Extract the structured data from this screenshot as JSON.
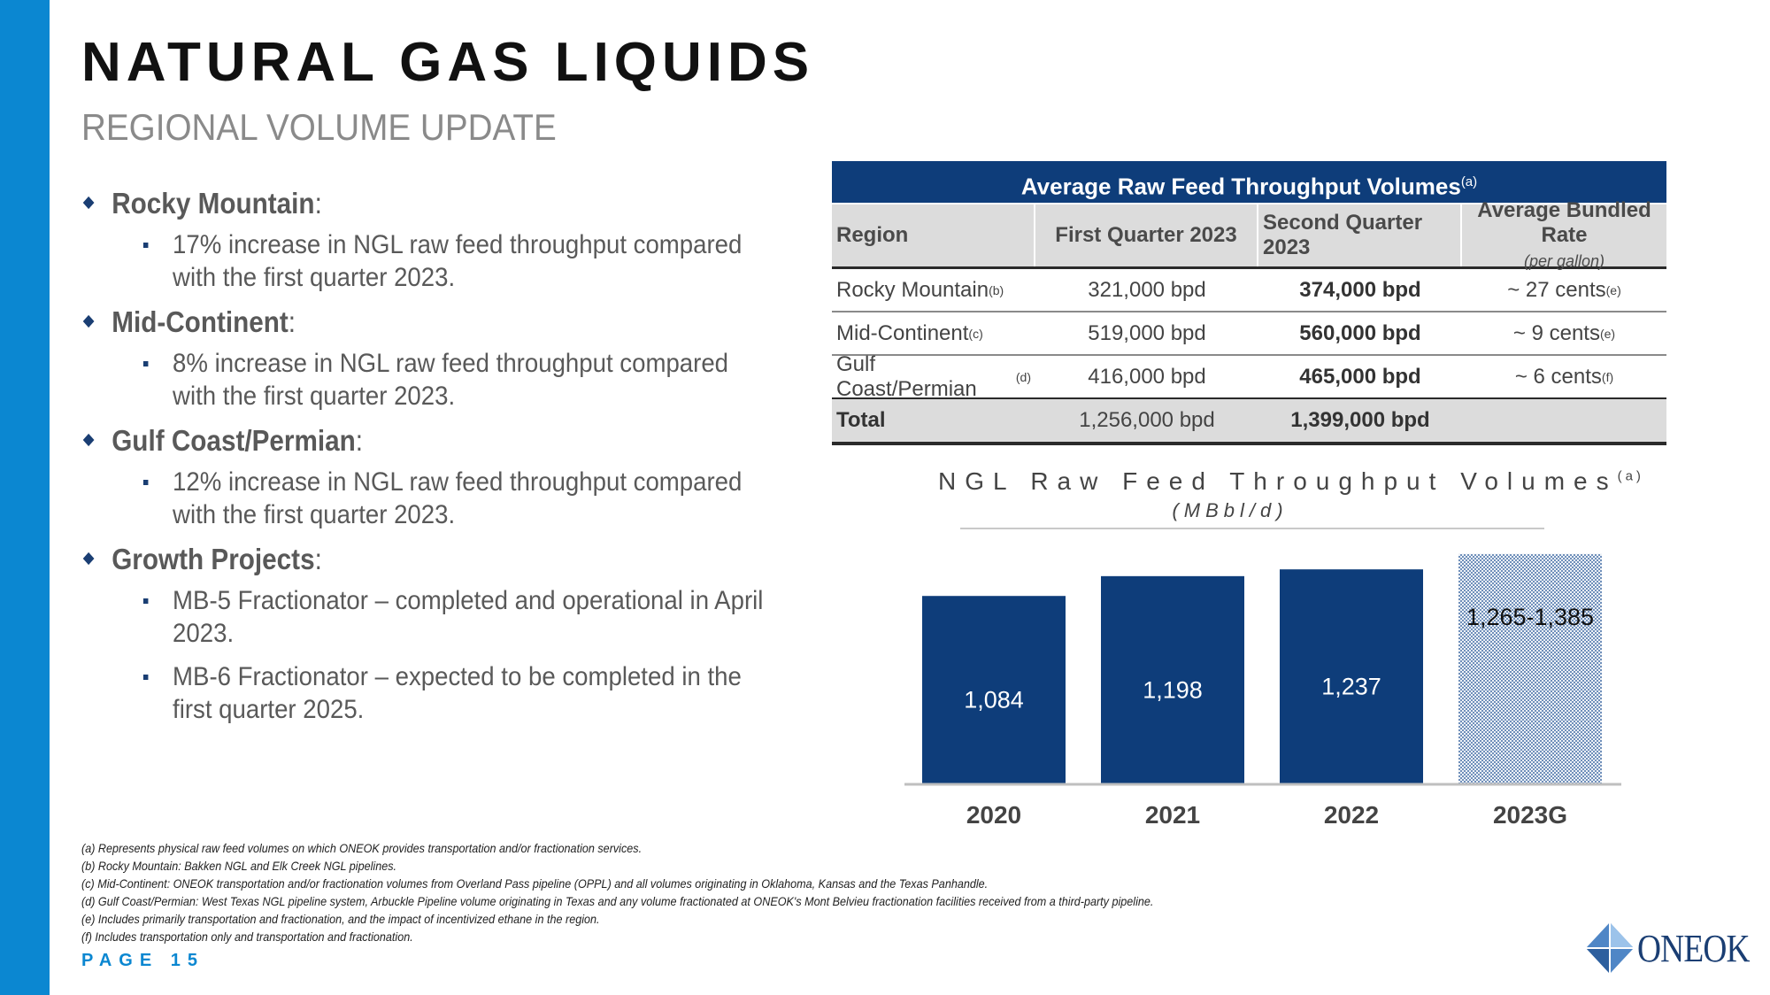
{
  "header": {
    "title": "NATURAL GAS LIQUIDS",
    "subtitle": "REGIONAL VOLUME UPDATE"
  },
  "bullets": [
    {
      "heading": "Rocky Mountain",
      "colon": ":",
      "items": [
        "17% increase in NGL raw feed throughput compared with the first quarter 2023."
      ]
    },
    {
      "heading": "Mid-Continent",
      "colon": ":",
      "items": [
        "8% increase in NGL raw feed throughput compared with the first quarter 2023."
      ]
    },
    {
      "heading": "Gulf Coast/Permian",
      "colon": ":",
      "items": [
        "12% increase in NGL raw feed throughput compared with the first quarter 2023."
      ]
    },
    {
      "heading": "Growth Projects",
      "colon": ":",
      "items": [
        "MB-5 Fractionator – completed and operational in April 2023.",
        "MB-6 Fractionator – expected to be completed in the first quarter 2025."
      ]
    }
  ],
  "table": {
    "title": "Average Raw Feed Throughput Volumes",
    "title_note": "(a)",
    "headers": {
      "region": "Region",
      "q1": "First Quarter 2023",
      "q2": "Second Quarter 2023",
      "rate": "Average Bundled Rate",
      "rate_note": "(per gallon)"
    },
    "rows": [
      {
        "region": "Rocky Mountain",
        "region_note": "(b)",
        "q1": "321,000 bpd",
        "q2": "374,000 bpd",
        "rate": "~ 27 cents",
        "rate_note": "(e)"
      },
      {
        "region": "Mid-Continent",
        "region_note": "(c)",
        "q1": "519,000 bpd",
        "q2": "560,000 bpd",
        "rate": "~ 9 cents",
        "rate_note": "(e)"
      },
      {
        "region": "Gulf Coast/Permian",
        "region_note": "(d)",
        "q1": "416,000 bpd",
        "q2": "465,000 bpd",
        "rate": "~ 6 cents",
        "rate_note": "(f)"
      }
    ],
    "total": {
      "label": "Total",
      "q1": "1,256,000 bpd",
      "q2": "1,399,000 bpd"
    }
  },
  "chart_data": {
    "type": "bar",
    "title": "NGL Raw Feed Throughput Volumes",
    "title_note": "(a)",
    "subtitle": "(MBbl/d)",
    "categories": [
      "2020",
      "2021",
      "2022",
      "2023G"
    ],
    "values": [
      1084,
      1198,
      1237,
      1325
    ],
    "data_labels": [
      "1,084",
      "1,198",
      "1,237",
      "1,265-1,385"
    ],
    "guidance_range": [
      1265,
      1385
    ],
    "ylim": [
      0,
      1350
    ],
    "colors": {
      "actual": "#0e3d7a",
      "guidance": "#6f8fba"
    }
  },
  "footnotes": [
    "(a) Represents physical raw feed volumes on which ONEOK provides transportation and/or fractionation services.",
    "(b) Rocky Mountain: Bakken NGL and Elk Creek NGL pipelines.",
    "(c) Mid-Continent: ONEOK transportation and/or fractionation volumes from Overland Pass pipeline (OPPL) and all volumes originating in Oklahoma, Kansas and the Texas Panhandle.",
    "(d) Gulf Coast/Permian: West Texas NGL pipeline system, Arbuckle Pipeline volume originating in Texas and any volume fractionated at ONEOK's Mont Belvieu fractionation facilities received from a third-party pipeline.",
    "(e) Includes primarily transportation and fractionation, and the impact of incentivized ethane in the region.",
    "(f) Includes transportation only and transportation and fractionation."
  ],
  "footer": {
    "page": "PAGE 15",
    "logo": "ONEOK"
  },
  "colors": {
    "accent_blue": "#0b87d1",
    "navy": "#0e3d7a"
  }
}
